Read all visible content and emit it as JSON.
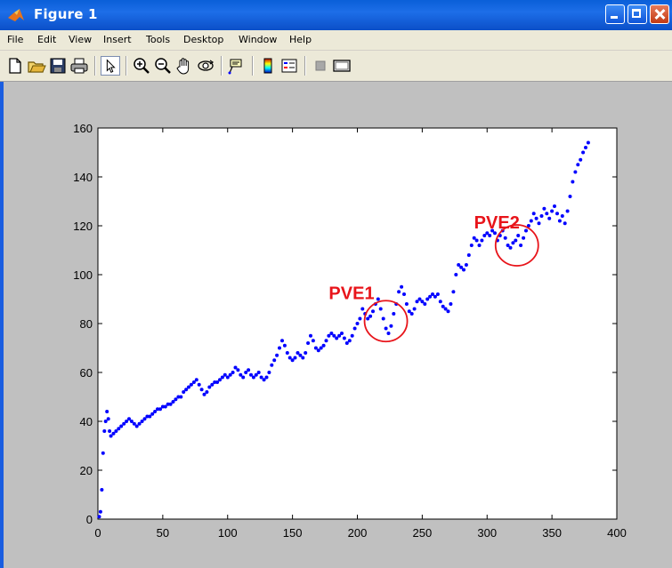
{
  "window": {
    "title": "Figure 1"
  },
  "menu": {
    "items": [
      "File",
      "Edit",
      "View",
      "Insert",
      "Tools",
      "Desktop",
      "Window",
      "Help"
    ]
  },
  "toolbar": {
    "icons": [
      "new-file-icon",
      "open-folder-icon",
      "save-icon",
      "print-icon",
      "pointer-icon",
      "zoom-in-icon",
      "zoom-out-icon",
      "pan-hand-icon",
      "rotate-3d-icon",
      "data-cursor-icon",
      "colorbar-icon",
      "legend-icon",
      "hide-plot-tools-icon",
      "show-plot-tools-icon"
    ]
  },
  "colors": {
    "titlebar": "#0b4fc8",
    "points": "#0000ff",
    "annotation": "#e8141a",
    "figure_bg": "#c0c0c0",
    "axes_bg": "#ffffff"
  },
  "chart_data": {
    "type": "scatter",
    "title": "",
    "xlabel": "",
    "ylabel": "",
    "xlim": [
      0,
      400
    ],
    "ylim": [
      0,
      160
    ],
    "xticks": [
      0,
      50,
      100,
      150,
      200,
      250,
      300,
      350,
      400
    ],
    "yticks": [
      0,
      20,
      40,
      60,
      80,
      100,
      120,
      140,
      160
    ],
    "grid": false,
    "marker_color": "#0000ff",
    "series": [
      {
        "points": [
          [
            1,
            1
          ],
          [
            2,
            3
          ],
          [
            3,
            12
          ],
          [
            4,
            27
          ],
          [
            5,
            36
          ],
          [
            6,
            40
          ],
          [
            7,
            44
          ],
          [
            8,
            41
          ],
          [
            9,
            36
          ],
          [
            10,
            34
          ],
          [
            12,
            35
          ],
          [
            14,
            36
          ],
          [
            16,
            37
          ],
          [
            18,
            38
          ],
          [
            20,
            39
          ],
          [
            22,
            40
          ],
          [
            24,
            41
          ],
          [
            26,
            40
          ],
          [
            28,
            39
          ],
          [
            30,
            38
          ],
          [
            32,
            39
          ],
          [
            34,
            40
          ],
          [
            36,
            41
          ],
          [
            38,
            42
          ],
          [
            40,
            42
          ],
          [
            42,
            43
          ],
          [
            44,
            44
          ],
          [
            46,
            45
          ],
          [
            48,
            45
          ],
          [
            50,
            46
          ],
          [
            52,
            46
          ],
          [
            54,
            47
          ],
          [
            56,
            47
          ],
          [
            58,
            48
          ],
          [
            60,
            49
          ],
          [
            62,
            50
          ],
          [
            64,
            50
          ],
          [
            66,
            52
          ],
          [
            68,
            53
          ],
          [
            70,
            54
          ],
          [
            72,
            55
          ],
          [
            74,
            56
          ],
          [
            76,
            57
          ],
          [
            78,
            55
          ],
          [
            80,
            53
          ],
          [
            82,
            51
          ],
          [
            84,
            52
          ],
          [
            86,
            54
          ],
          [
            88,
            55
          ],
          [
            90,
            56
          ],
          [
            92,
            56
          ],
          [
            94,
            57
          ],
          [
            96,
            58
          ],
          [
            98,
            59
          ],
          [
            100,
            58
          ],
          [
            102,
            59
          ],
          [
            104,
            60
          ],
          [
            106,
            62
          ],
          [
            108,
            61
          ],
          [
            110,
            59
          ],
          [
            112,
            58
          ],
          [
            114,
            60
          ],
          [
            116,
            61
          ],
          [
            118,
            59
          ],
          [
            120,
            58
          ],
          [
            122,
            59
          ],
          [
            124,
            60
          ],
          [
            126,
            58
          ],
          [
            128,
            57
          ],
          [
            130,
            58
          ],
          [
            132,
            60
          ],
          [
            134,
            63
          ],
          [
            136,
            65
          ],
          [
            138,
            67
          ],
          [
            140,
            70
          ],
          [
            142,
            73
          ],
          [
            144,
            71
          ],
          [
            146,
            68
          ],
          [
            148,
            66
          ],
          [
            150,
            65
          ],
          [
            152,
            66
          ],
          [
            154,
            68
          ],
          [
            156,
            67
          ],
          [
            158,
            66
          ],
          [
            160,
            68
          ],
          [
            162,
            72
          ],
          [
            164,
            75
          ],
          [
            166,
            73
          ],
          [
            168,
            70
          ],
          [
            170,
            69
          ],
          [
            172,
            70
          ],
          [
            174,
            71
          ],
          [
            176,
            73
          ],
          [
            178,
            75
          ],
          [
            180,
            76
          ],
          [
            182,
            75
          ],
          [
            184,
            74
          ],
          [
            186,
            75
          ],
          [
            188,
            76
          ],
          [
            190,
            74
          ],
          [
            192,
            72
          ],
          [
            194,
            73
          ],
          [
            196,
            75
          ],
          [
            198,
            78
          ],
          [
            200,
            80
          ],
          [
            202,
            82
          ],
          [
            204,
            86
          ],
          [
            206,
            84
          ],
          [
            208,
            82
          ],
          [
            210,
            83
          ],
          [
            212,
            85
          ],
          [
            214,
            88
          ],
          [
            216,
            90
          ],
          [
            218,
            86
          ],
          [
            220,
            82
          ],
          [
            222,
            78
          ],
          [
            224,
            76
          ],
          [
            226,
            79
          ],
          [
            228,
            84
          ],
          [
            230,
            88
          ],
          [
            232,
            93
          ],
          [
            234,
            95
          ],
          [
            236,
            92
          ],
          [
            238,
            88
          ],
          [
            240,
            85
          ],
          [
            242,
            84
          ],
          [
            244,
            86
          ],
          [
            246,
            89
          ],
          [
            248,
            90
          ],
          [
            250,
            89
          ],
          [
            252,
            88
          ],
          [
            254,
            90
          ],
          [
            256,
            91
          ],
          [
            258,
            92
          ],
          [
            260,
            91
          ],
          [
            262,
            92
          ],
          [
            264,
            89
          ],
          [
            266,
            87
          ],
          [
            268,
            86
          ],
          [
            270,
            85
          ],
          [
            272,
            88
          ],
          [
            274,
            93
          ],
          [
            276,
            100
          ],
          [
            278,
            104
          ],
          [
            280,
            103
          ],
          [
            282,
            102
          ],
          [
            284,
            104
          ],
          [
            286,
            108
          ],
          [
            288,
            112
          ],
          [
            290,
            115
          ],
          [
            292,
            114
          ],
          [
            294,
            112
          ],
          [
            296,
            114
          ],
          [
            298,
            116
          ],
          [
            300,
            117
          ],
          [
            302,
            116
          ],
          [
            304,
            118
          ],
          [
            306,
            117
          ],
          [
            308,
            114
          ],
          [
            310,
            116
          ],
          [
            312,
            118
          ],
          [
            314,
            115
          ],
          [
            316,
            112
          ],
          [
            318,
            111
          ],
          [
            320,
            113
          ],
          [
            322,
            114
          ],
          [
            324,
            116
          ],
          [
            326,
            112
          ],
          [
            328,
            115
          ],
          [
            330,
            118
          ],
          [
            332,
            120
          ],
          [
            334,
            122
          ],
          [
            336,
            125
          ],
          [
            338,
            123
          ],
          [
            340,
            121
          ],
          [
            342,
            124
          ],
          [
            344,
            127
          ],
          [
            346,
            125
          ],
          [
            348,
            123
          ],
          [
            350,
            126
          ],
          [
            352,
            128
          ],
          [
            354,
            125
          ],
          [
            356,
            122
          ],
          [
            358,
            124
          ],
          [
            360,
            121
          ],
          [
            362,
            126
          ],
          [
            364,
            132
          ],
          [
            366,
            138
          ],
          [
            368,
            142
          ],
          [
            370,
            145
          ],
          [
            372,
            147
          ],
          [
            374,
            150
          ],
          [
            376,
            152
          ],
          [
            378,
            154
          ]
        ]
      }
    ],
    "annotations": [
      {
        "text": "PVE1",
        "text_x": 178,
        "text_y": 90,
        "circle_x": 222,
        "circle_y": 81
      },
      {
        "text": "PVE2",
        "text_x": 290,
        "text_y": 119,
        "circle_x": 323,
        "circle_y": 112
      }
    ]
  }
}
